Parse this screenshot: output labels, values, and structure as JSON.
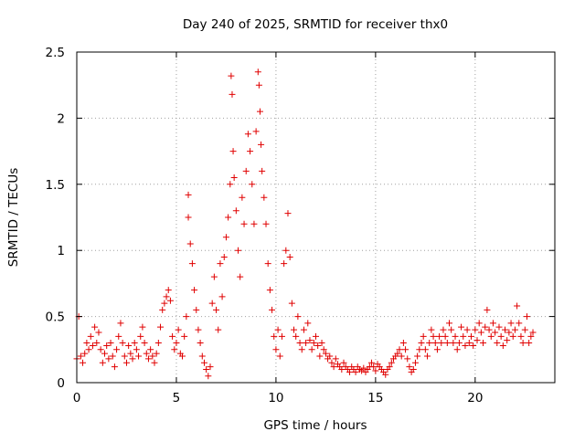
{
  "chart_data": {
    "type": "scatter",
    "title": "Day 240 of 2025, SRMTID for receiver thx0",
    "xlabel": "GPS time / hours",
    "ylabel": "SRMTID / TECUs",
    "xlim": [
      0,
      24
    ],
    "ylim": [
      0,
      2.5
    ],
    "x_ticks": [
      {
        "value": 0,
        "label": "0"
      },
      {
        "value": 5,
        "label": "5"
      },
      {
        "value": 10,
        "label": "10"
      },
      {
        "value": 15,
        "label": "15"
      },
      {
        "value": 20,
        "label": "20"
      }
    ],
    "y_ticks": [
      {
        "value": 0,
        "label": "0"
      },
      {
        "value": 0.5,
        "label": "0.5"
      },
      {
        "value": 1,
        "label": "1"
      },
      {
        "value": 1.5,
        "label": "1.5"
      },
      {
        "value": 2,
        "label": "2"
      },
      {
        "value": 2.5,
        "label": "2.5"
      }
    ],
    "grid": true,
    "marker": "+",
    "series": [
      {
        "name": "SRMTID thx0",
        "color": "#e00000",
        "points": [
          [
            0.0,
            0.18
          ],
          [
            0.1,
            0.5
          ],
          [
            0.2,
            0.2
          ],
          [
            0.3,
            0.15
          ],
          [
            0.4,
            0.22
          ],
          [
            0.5,
            0.3
          ],
          [
            0.6,
            0.25
          ],
          [
            0.7,
            0.35
          ],
          [
            0.8,
            0.28
          ],
          [
            0.9,
            0.42
          ],
          [
            1.0,
            0.3
          ],
          [
            1.1,
            0.38
          ],
          [
            1.2,
            0.25
          ],
          [
            1.3,
            0.15
          ],
          [
            1.4,
            0.22
          ],
          [
            1.5,
            0.28
          ],
          [
            1.6,
            0.18
          ],
          [
            1.7,
            0.3
          ],
          [
            1.8,
            0.2
          ],
          [
            1.9,
            0.12
          ],
          [
            2.0,
            0.25
          ],
          [
            2.1,
            0.35
          ],
          [
            2.2,
            0.45
          ],
          [
            2.3,
            0.3
          ],
          [
            2.4,
            0.2
          ],
          [
            2.5,
            0.15
          ],
          [
            2.6,
            0.28
          ],
          [
            2.7,
            0.22
          ],
          [
            2.8,
            0.18
          ],
          [
            2.9,
            0.3
          ],
          [
            3.0,
            0.25
          ],
          [
            3.1,
            0.2
          ],
          [
            3.2,
            0.35
          ],
          [
            3.3,
            0.42
          ],
          [
            3.4,
            0.3
          ],
          [
            3.5,
            0.22
          ],
          [
            3.6,
            0.18
          ],
          [
            3.7,
            0.25
          ],
          [
            3.8,
            0.2
          ],
          [
            3.9,
            0.15
          ],
          [
            4.0,
            0.22
          ],
          [
            4.1,
            0.3
          ],
          [
            4.2,
            0.42
          ],
          [
            4.3,
            0.55
          ],
          [
            4.4,
            0.6
          ],
          [
            4.5,
            0.65
          ],
          [
            4.6,
            0.7
          ],
          [
            4.7,
            0.62
          ],
          [
            4.8,
            0.35
          ],
          [
            4.9,
            0.25
          ],
          [
            5.0,
            0.3
          ],
          [
            5.1,
            0.4
          ],
          [
            5.2,
            0.22
          ],
          [
            5.3,
            0.2
          ],
          [
            5.4,
            0.35
          ],
          [
            5.5,
            0.5
          ],
          [
            5.6,
            1.42
          ],
          [
            5.6,
            1.25
          ],
          [
            5.7,
            1.05
          ],
          [
            5.8,
            0.9
          ],
          [
            5.9,
            0.7
          ],
          [
            6.0,
            0.55
          ],
          [
            6.1,
            0.4
          ],
          [
            6.2,
            0.3
          ],
          [
            6.3,
            0.2
          ],
          [
            6.4,
            0.15
          ],
          [
            6.5,
            0.1
          ],
          [
            6.6,
            0.05
          ],
          [
            6.7,
            0.12
          ],
          [
            6.8,
            0.6
          ],
          [
            6.9,
            0.8
          ],
          [
            7.0,
            0.55
          ],
          [
            7.1,
            0.4
          ],
          [
            7.2,
            0.9
          ],
          [
            7.3,
            0.65
          ],
          [
            7.4,
            0.95
          ],
          [
            7.5,
            1.1
          ],
          [
            7.6,
            1.25
          ],
          [
            7.7,
            1.5
          ],
          [
            7.75,
            2.32
          ],
          [
            7.8,
            2.18
          ],
          [
            7.85,
            1.75
          ],
          [
            7.9,
            1.55
          ],
          [
            8.0,
            1.3
          ],
          [
            8.1,
            1.0
          ],
          [
            8.2,
            0.8
          ],
          [
            8.3,
            1.4
          ],
          [
            8.4,
            1.2
          ],
          [
            8.5,
            1.6
          ],
          [
            8.6,
            1.88
          ],
          [
            8.7,
            1.75
          ],
          [
            8.8,
            1.5
          ],
          [
            8.9,
            1.2
          ],
          [
            9.0,
            1.9
          ],
          [
            9.1,
            2.35
          ],
          [
            9.15,
            2.25
          ],
          [
            9.2,
            2.05
          ],
          [
            9.25,
            1.8
          ],
          [
            9.3,
            1.6
          ],
          [
            9.4,
            1.4
          ],
          [
            9.5,
            1.2
          ],
          [
            9.6,
            0.9
          ],
          [
            9.7,
            0.7
          ],
          [
            9.8,
            0.55
          ],
          [
            9.9,
            0.35
          ],
          [
            10.0,
            0.25
          ],
          [
            10.1,
            0.4
          ],
          [
            10.2,
            0.2
          ],
          [
            10.3,
            0.35
          ],
          [
            10.4,
            0.9
          ],
          [
            10.5,
            1.0
          ],
          [
            10.6,
            1.28
          ],
          [
            10.7,
            0.95
          ],
          [
            10.8,
            0.6
          ],
          [
            10.9,
            0.4
          ],
          [
            11.0,
            0.35
          ],
          [
            11.1,
            0.5
          ],
          [
            11.2,
            0.3
          ],
          [
            11.3,
            0.25
          ],
          [
            11.4,
            0.4
          ],
          [
            11.5,
            0.3
          ],
          [
            11.6,
            0.45
          ],
          [
            11.7,
            0.32
          ],
          [
            11.8,
            0.25
          ],
          [
            11.9,
            0.3
          ],
          [
            12.0,
            0.35
          ],
          [
            12.1,
            0.28
          ],
          [
            12.2,
            0.2
          ],
          [
            12.3,
            0.3
          ],
          [
            12.4,
            0.25
          ],
          [
            12.5,
            0.22
          ],
          [
            12.6,
            0.18
          ],
          [
            12.7,
            0.2
          ],
          [
            12.8,
            0.15
          ],
          [
            12.9,
            0.12
          ],
          [
            13.0,
            0.18
          ],
          [
            13.1,
            0.14
          ],
          [
            13.2,
            0.12
          ],
          [
            13.3,
            0.1
          ],
          [
            13.4,
            0.15
          ],
          [
            13.5,
            0.12
          ],
          [
            13.6,
            0.1
          ],
          [
            13.7,
            0.08
          ],
          [
            13.8,
            0.12
          ],
          [
            13.9,
            0.1
          ],
          [
            14.0,
            0.08
          ],
          [
            14.1,
            0.12
          ],
          [
            14.2,
            0.1
          ],
          [
            14.3,
            0.09
          ],
          [
            14.4,
            0.11
          ],
          [
            14.5,
            0.08
          ],
          [
            14.6,
            0.1
          ],
          [
            14.7,
            0.12
          ],
          [
            14.8,
            0.15
          ],
          [
            14.9,
            0.12
          ],
          [
            15.0,
            0.09
          ],
          [
            15.1,
            0.14
          ],
          [
            15.2,
            0.12
          ],
          [
            15.3,
            0.1
          ],
          [
            15.4,
            0.08
          ],
          [
            15.5,
            0.06
          ],
          [
            15.6,
            0.1
          ],
          [
            15.7,
            0.12
          ],
          [
            15.8,
            0.15
          ],
          [
            15.9,
            0.18
          ],
          [
            16.0,
            0.2
          ],
          [
            16.1,
            0.22
          ],
          [
            16.2,
            0.25
          ],
          [
            16.3,
            0.2
          ],
          [
            16.4,
            0.3
          ],
          [
            16.5,
            0.25
          ],
          [
            16.6,
            0.18
          ],
          [
            16.7,
            0.12
          ],
          [
            16.8,
            0.08
          ],
          [
            16.9,
            0.1
          ],
          [
            17.0,
            0.15
          ],
          [
            17.1,
            0.2
          ],
          [
            17.2,
            0.25
          ],
          [
            17.3,
            0.3
          ],
          [
            17.4,
            0.35
          ],
          [
            17.5,
            0.25
          ],
          [
            17.6,
            0.2
          ],
          [
            17.7,
            0.3
          ],
          [
            17.8,
            0.4
          ],
          [
            17.9,
            0.35
          ],
          [
            18.0,
            0.3
          ],
          [
            18.1,
            0.25
          ],
          [
            18.2,
            0.35
          ],
          [
            18.3,
            0.3
          ],
          [
            18.4,
            0.4
          ],
          [
            18.5,
            0.35
          ],
          [
            18.6,
            0.3
          ],
          [
            18.7,
            0.45
          ],
          [
            18.8,
            0.4
          ],
          [
            18.9,
            0.3
          ],
          [
            19.0,
            0.35
          ],
          [
            19.1,
            0.25
          ],
          [
            19.2,
            0.3
          ],
          [
            19.3,
            0.42
          ],
          [
            19.4,
            0.35
          ],
          [
            19.5,
            0.28
          ],
          [
            19.6,
            0.4
          ],
          [
            19.7,
            0.3
          ],
          [
            19.8,
            0.35
          ],
          [
            19.9,
            0.28
          ],
          [
            20.0,
            0.4
          ],
          [
            20.1,
            0.32
          ],
          [
            20.2,
            0.45
          ],
          [
            20.3,
            0.38
          ],
          [
            20.4,
            0.3
          ],
          [
            20.5,
            0.42
          ],
          [
            20.6,
            0.55
          ],
          [
            20.7,
            0.4
          ],
          [
            20.8,
            0.35
          ],
          [
            20.9,
            0.45
          ],
          [
            21.0,
            0.38
          ],
          [
            21.1,
            0.3
          ],
          [
            21.2,
            0.42
          ],
          [
            21.3,
            0.35
          ],
          [
            21.4,
            0.28
          ],
          [
            21.5,
            0.4
          ],
          [
            21.6,
            0.32
          ],
          [
            21.7,
            0.38
          ],
          [
            21.8,
            0.45
          ],
          [
            21.9,
            0.35
          ],
          [
            22.0,
            0.4
          ],
          [
            22.1,
            0.58
          ],
          [
            22.2,
            0.45
          ],
          [
            22.3,
            0.35
          ],
          [
            22.4,
            0.3
          ],
          [
            22.5,
            0.4
          ],
          [
            22.6,
            0.5
          ],
          [
            22.7,
            0.3
          ],
          [
            22.8,
            0.35
          ],
          [
            22.9,
            0.38
          ]
        ]
      }
    ]
  }
}
